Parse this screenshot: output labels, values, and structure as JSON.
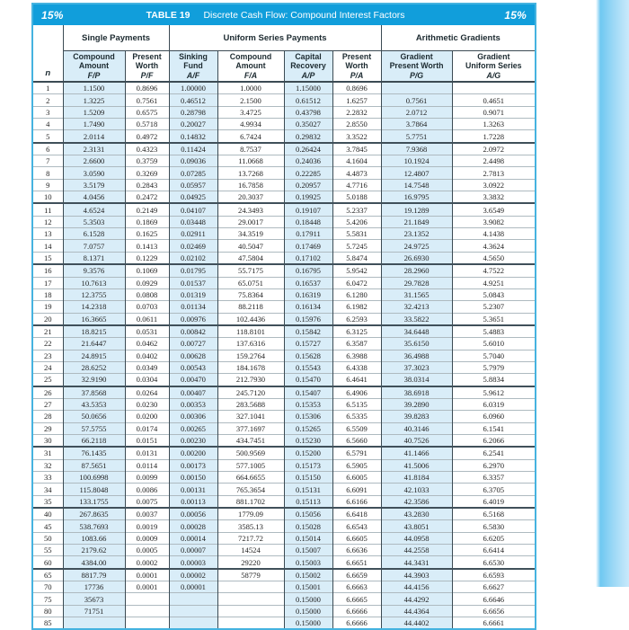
{
  "titlebar": {
    "rate_left": "15%",
    "table_label": "TABLE 19",
    "title": "Discrete Cash Flow: Compound Interest Factors",
    "rate_right": "15%"
  },
  "header": {
    "n_label": "n",
    "groups": [
      {
        "label": "Single Payments"
      },
      {
        "label": "Uniform Series Payments"
      },
      {
        "label": "Arithmetic Gradients"
      }
    ],
    "columns": [
      {
        "label": "Compound\nAmount",
        "notation": "F/P",
        "shaded": true
      },
      {
        "label": "Present\nWorth",
        "notation": "P/F",
        "shaded": false
      },
      {
        "label": "Sinking\nFund",
        "notation": "A/F",
        "shaded": true
      },
      {
        "label": "Compound\nAmount",
        "notation": "F/A",
        "shaded": false
      },
      {
        "label": "Capital\nRecovery",
        "notation": "A/P",
        "shaded": true
      },
      {
        "label": "Present\nWorth",
        "notation": "P/A",
        "shaded": false
      },
      {
        "label": "Gradient\nPresent Worth",
        "notation": "P/G",
        "shaded": true
      },
      {
        "label": "Gradient\nUniform Series",
        "notation": "A/G",
        "shaded": false
      }
    ]
  },
  "colors": {
    "titlebar_bg": "#119edb",
    "shaded_column": "#d9edf8",
    "outer_frame": "#45b3e0",
    "grid_dark": "#3c4b54",
    "grid_light": "#aebac0",
    "edge_band_start": "#6fc8f1",
    "edge_band_end": "#c9e9fb"
  },
  "rows": [
    [
      "1",
      "1.1500",
      "0.8696",
      "1.00000",
      "1.0000",
      "1.15000",
      "0.8696",
      "",
      ""
    ],
    [
      "2",
      "1.3225",
      "0.7561",
      "0.46512",
      "2.1500",
      "0.61512",
      "1.6257",
      "0.7561",
      "0.4651"
    ],
    [
      "3",
      "1.5209",
      "0.6575",
      "0.28798",
      "3.4725",
      "0.43798",
      "2.2832",
      "2.0712",
      "0.9071"
    ],
    [
      "4",
      "1.7490",
      "0.5718",
      "0.20027",
      "4.9934",
      "0.35027",
      "2.8550",
      "3.7864",
      "1.3263"
    ],
    [
      "5",
      "2.0114",
      "0.4972",
      "0.14832",
      "6.7424",
      "0.29832",
      "3.3522",
      "5.7751",
      "1.7228"
    ],
    [
      "6",
      "2.3131",
      "0.4323",
      "0.11424",
      "8.7537",
      "0.26424",
      "3.7845",
      "7.9368",
      "2.0972"
    ],
    [
      "7",
      "2.6600",
      "0.3759",
      "0.09036",
      "11.0668",
      "0.24036",
      "4.1604",
      "10.1924",
      "2.4498"
    ],
    [
      "8",
      "3.0590",
      "0.3269",
      "0.07285",
      "13.7268",
      "0.22285",
      "4.4873",
      "12.4807",
      "2.7813"
    ],
    [
      "9",
      "3.5179",
      "0.2843",
      "0.05957",
      "16.7858",
      "0.20957",
      "4.7716",
      "14.7548",
      "3.0922"
    ],
    [
      "10",
      "4.0456",
      "0.2472",
      "0.04925",
      "20.3037",
      "0.19925",
      "5.0188",
      "16.9795",
      "3.3832"
    ],
    [
      "11",
      "4.6524",
      "0.2149",
      "0.04107",
      "24.3493",
      "0.19107",
      "5.2337",
      "19.1289",
      "3.6549"
    ],
    [
      "12",
      "5.3503",
      "0.1869",
      "0.03448",
      "29.0017",
      "0.18448",
      "5.4206",
      "21.1849",
      "3.9082"
    ],
    [
      "13",
      "6.1528",
      "0.1625",
      "0.02911",
      "34.3519",
      "0.17911",
      "5.5831",
      "23.1352",
      "4.1438"
    ],
    [
      "14",
      "7.0757",
      "0.1413",
      "0.02469",
      "40.5047",
      "0.17469",
      "5.7245",
      "24.9725",
      "4.3624"
    ],
    [
      "15",
      "8.1371",
      "0.1229",
      "0.02102",
      "47.5804",
      "0.17102",
      "5.8474",
      "26.6930",
      "4.5650"
    ],
    [
      "16",
      "9.3576",
      "0.1069",
      "0.01795",
      "55.7175",
      "0.16795",
      "5.9542",
      "28.2960",
      "4.7522"
    ],
    [
      "17",
      "10.7613",
      "0.0929",
      "0.01537",
      "65.0751",
      "0.16537",
      "6.0472",
      "29.7828",
      "4.9251"
    ],
    [
      "18",
      "12.3755",
      "0.0808",
      "0.01319",
      "75.8364",
      "0.16319",
      "6.1280",
      "31.1565",
      "5.0843"
    ],
    [
      "19",
      "14.2318",
      "0.0703",
      "0.01134",
      "88.2118",
      "0.16134",
      "6.1982",
      "32.4213",
      "5.2307"
    ],
    [
      "20",
      "16.3665",
      "0.0611",
      "0.00976",
      "102.4436",
      "0.15976",
      "6.2593",
      "33.5822",
      "5.3651"
    ],
    [
      "21",
      "18.8215",
      "0.0531",
      "0.00842",
      "118.8101",
      "0.15842",
      "6.3125",
      "34.6448",
      "5.4883"
    ],
    [
      "22",
      "21.6447",
      "0.0462",
      "0.00727",
      "137.6316",
      "0.15727",
      "6.3587",
      "35.6150",
      "5.6010"
    ],
    [
      "23",
      "24.8915",
      "0.0402",
      "0.00628",
      "159.2764",
      "0.15628",
      "6.3988",
      "36.4988",
      "5.7040"
    ],
    [
      "24",
      "28.6252",
      "0.0349",
      "0.00543",
      "184.1678",
      "0.15543",
      "6.4338",
      "37.3023",
      "5.7979"
    ],
    [
      "25",
      "32.9190",
      "0.0304",
      "0.00470",
      "212.7930",
      "0.15470",
      "6.4641",
      "38.0314",
      "5.8834"
    ],
    [
      "26",
      "37.8568",
      "0.0264",
      "0.00407",
      "245.7120",
      "0.15407",
      "6.4906",
      "38.6918",
      "5.9612"
    ],
    [
      "27",
      "43.5353",
      "0.0230",
      "0.00353",
      "283.5688",
      "0.15353",
      "6.5135",
      "39.2890",
      "6.0319"
    ],
    [
      "28",
      "50.0656",
      "0.0200",
      "0.00306",
      "327.1041",
      "0.15306",
      "6.5335",
      "39.8283",
      "6.0960"
    ],
    [
      "29",
      "57.5755",
      "0.0174",
      "0.00265",
      "377.1697",
      "0.15265",
      "6.5509",
      "40.3146",
      "6.1541"
    ],
    [
      "30",
      "66.2118",
      "0.0151",
      "0.00230",
      "434.7451",
      "0.15230",
      "6.5660",
      "40.7526",
      "6.2066"
    ],
    [
      "31",
      "76.1435",
      "0.0131",
      "0.00200",
      "500.9569",
      "0.15200",
      "6.5791",
      "41.1466",
      "6.2541"
    ],
    [
      "32",
      "87.5651",
      "0.0114",
      "0.00173",
      "577.1005",
      "0.15173",
      "6.5905",
      "41.5006",
      "6.2970"
    ],
    [
      "33",
      "100.6998",
      "0.0099",
      "0.00150",
      "664.6655",
      "0.15150",
      "6.6005",
      "41.8184",
      "6.3357"
    ],
    [
      "34",
      "115.8048",
      "0.0086",
      "0.00131",
      "765.3654",
      "0.15131",
      "6.6091",
      "42.1033",
      "6.3705"
    ],
    [
      "35",
      "133.1755",
      "0.0075",
      "0.00113",
      "881.1702",
      "0.15113",
      "6.6166",
      "42.3586",
      "6.4019"
    ],
    [
      "40",
      "267.8635",
      "0.0037",
      "0.00056",
      "1779.09",
      "0.15056",
      "6.6418",
      "43.2830",
      "6.5168"
    ],
    [
      "45",
      "538.7693",
      "0.0019",
      "0.00028",
      "3585.13",
      "0.15028",
      "6.6543",
      "43.8051",
      "6.5830"
    ],
    [
      "50",
      "1083.66",
      "0.0009",
      "0.00014",
      "7217.72",
      "0.15014",
      "6.6605",
      "44.0958",
      "6.6205"
    ],
    [
      "55",
      "2179.62",
      "0.0005",
      "0.00007",
      "14524",
      "0.15007",
      "6.6636",
      "44.2558",
      "6.6414"
    ],
    [
      "60",
      "4384.00",
      "0.0002",
      "0.00003",
      "29220",
      "0.15003",
      "6.6651",
      "44.3431",
      "6.6530"
    ],
    [
      "65",
      "8817.79",
      "0.0001",
      "0.00002",
      "58779",
      "0.15002",
      "6.6659",
      "44.3903",
      "6.6593"
    ],
    [
      "70",
      "17736",
      "0.0001",
      "0.00001",
      "",
      "0.15001",
      "6.6663",
      "44.4156",
      "6.6627"
    ],
    [
      "75",
      "35673",
      "",
      "",
      "",
      "0.15000",
      "6.6665",
      "44.4292",
      "6.6646"
    ],
    [
      "80",
      "71751",
      "",
      "",
      "",
      "0.15000",
      "6.6666",
      "44.4364",
      "6.6656"
    ],
    [
      "85",
      "",
      "",
      "",
      "",
      "0.15000",
      "6.6666",
      "44.4402",
      "6.6661"
    ]
  ]
}
